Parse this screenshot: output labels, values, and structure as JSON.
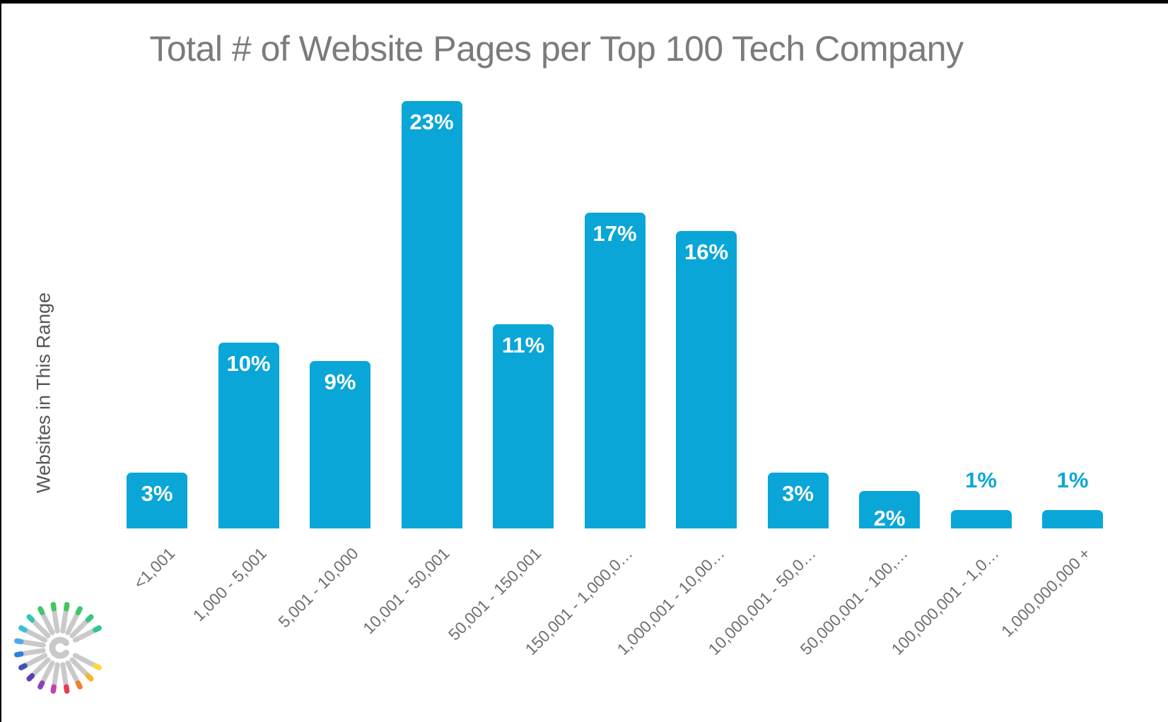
{
  "chart_data": {
    "type": "bar",
    "title": "Total # of Website Pages per Top 100 Tech Company",
    "ylabel": "Websites in This Range",
    "xlabel": "",
    "categories": [
      "<1,001",
      "1,000 - 5,001",
      "5,001 - 10,000",
      "10,001 - 50,001",
      "50,001 - 150,001",
      "150,001 - 1,000,0…",
      "1,000,001 - 10,00…",
      "10,000,001 - 50,0…",
      "50,000,001 - 100,…",
      "100,000,001 - 1,0…",
      "1,000,000,000 +"
    ],
    "values": [
      3,
      10,
      9,
      23,
      11,
      17,
      16,
      3,
      2,
      1,
      1
    ],
    "value_labels": [
      "3%",
      "10%",
      "9%",
      "23%",
      "11%",
      "17%",
      "16%",
      "3%",
      "2%",
      "1%",
      "1%"
    ],
    "value_label_placement": [
      "inside",
      "inside",
      "inside",
      "inside",
      "inside",
      "inside",
      "inside",
      "inside",
      "inside",
      "outside",
      "outside"
    ],
    "bar_color": "#0aa6d8",
    "value_label_color_inside": "#ffffff",
    "value_label_color_outside": "#0aa6d8",
    "title_color": "#7b7b7b",
    "axis_label_color": "#55565a",
    "tick_label_color": "#6f6f6f",
    "grid": false,
    "value_axis_ticks_visible": false,
    "ylim_percent": [
      0,
      25
    ]
  },
  "logo": {
    "name": "rainbow-burst-logo",
    "spoke_color": "#c9c9c9",
    "tip_colors": [
      "#2fc690",
      "#3ac47b",
      "#41c566",
      "#44c55e",
      "#44c55e",
      "#3fc56e",
      "#2fc8b0",
      "#38c0dd",
      "#4ba9ef",
      "#2f7de0",
      "#4153b4",
      "#5d3db7",
      "#8f41bf",
      "#c442ad",
      "#e93a55",
      "#f07f2e",
      "#f6b52a",
      "#f7d93c"
    ]
  }
}
